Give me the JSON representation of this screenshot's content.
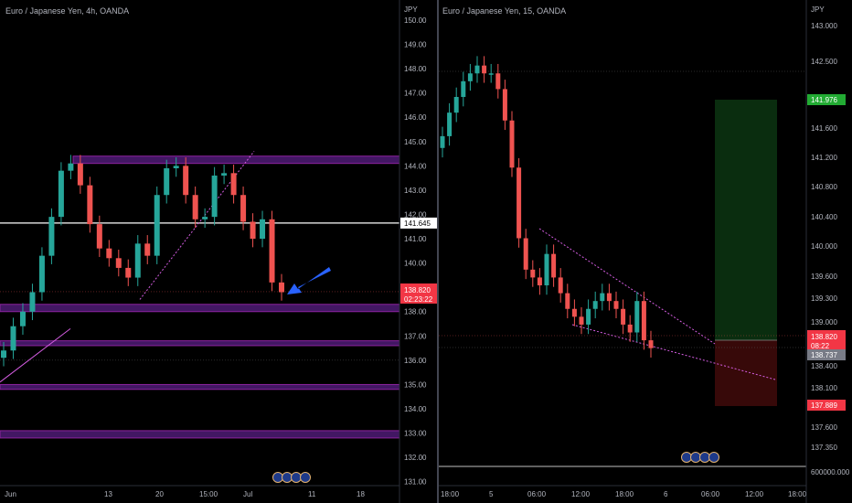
{
  "colors": {
    "background": "#000000",
    "text": "#b2b5be",
    "up": "#26a69a",
    "down": "#ef5350",
    "zone_fill": "#4a1a6e",
    "zone_stroke": "#9c27b0",
    "trend": "#d35ce0",
    "arrow": "#2962ff",
    "price_tag": "#f23645",
    "white_line": "#ffffff",
    "profit_zone": "#0b2f10",
    "loss_zone": "#3a0a0a",
    "green_tag": "#22ab33",
    "gray_tag": "#787b86"
  },
  "icons": [
    "flag-icon-1",
    "flag-icon-2",
    "flag-icon-3",
    "flag-icon-4"
  ],
  "chart_data": [
    {
      "type": "candlestick",
      "title": "Euro / Japanese Yen, 4h, OANDA",
      "currency": "JPY",
      "ylim": [
        130.5,
        150.6
      ],
      "y_ticks": [
        "150.00",
        "149.00",
        "148.00",
        "147.00",
        "146.00",
        "145.00",
        "144.00",
        "143.00",
        "142.00",
        "141.00",
        "140.00",
        "139.00",
        "138.00",
        "137.00",
        "136.00",
        "135.00",
        "134.00",
        "133.00",
        "132.00",
        "131.00"
      ],
      "x_ticks": [
        "Jun",
        "13",
        "20",
        "15:00",
        "Jul",
        "11",
        "18"
      ],
      "price_labels": {
        "horizontal_line": "141.645",
        "last": "138.820",
        "countdown": "02:23:22"
      },
      "zones": [
        [
          144.1,
          144.4
        ],
        [
          138.0,
          138.3
        ],
        [
          136.6,
          136.8
        ],
        [
          134.8,
          135.0
        ],
        [
          132.8,
          133.1
        ]
      ],
      "series": [
        {
          "values": [
            136.4,
            137.4,
            138.0,
            138.8,
            140.3,
            141.9,
            143.8,
            144.1,
            143.2,
            141.6,
            140.6,
            140.2,
            139.8,
            139.4,
            140.8,
            140.3,
            142.8,
            143.9,
            144.0,
            142.8,
            141.8,
            141.9,
            143.6,
            143.7,
            142.8,
            141.7,
            141.0,
            141.8,
            139.2,
            138.8
          ]
        }
      ]
    },
    {
      "type": "candlestick",
      "title": "Euro / Japanese Yen, 15, OANDA",
      "currency": "JPY",
      "ylim": [
        137.1,
        143.1
      ],
      "y_ticks": [
        "143.000",
        "142.500",
        "142.000",
        "141.600",
        "141.200",
        "140.800",
        "140.400",
        "140.000",
        "139.600",
        "139.300",
        "139.000",
        "138.400",
        "138.100",
        "137.600",
        "137.350",
        "600000.000"
      ],
      "x_ticks": [
        "18:00",
        "5",
        "06:00",
        "12:00",
        "18:00",
        "6",
        "06:00",
        "12:00",
        "18:00"
      ],
      "price_labels": {
        "target": "141.976",
        "last": "138.820",
        "countdown": "08:22",
        "entry": "138.737",
        "stop": "137.889"
      },
      "series": [
        {
          "values": [
            141.4,
            141.7,
            141.9,
            142.1,
            142.2,
            142.3,
            142.2,
            142.2,
            142.0,
            141.6,
            141.0,
            140.1,
            139.7,
            139.6,
            139.5,
            139.9,
            139.6,
            139.4,
            139.2,
            139.1,
            139.0,
            139.2,
            139.3,
            139.4,
            139.3,
            139.2,
            139.0,
            138.9,
            139.3,
            138.8,
            138.7
          ]
        }
      ]
    }
  ]
}
